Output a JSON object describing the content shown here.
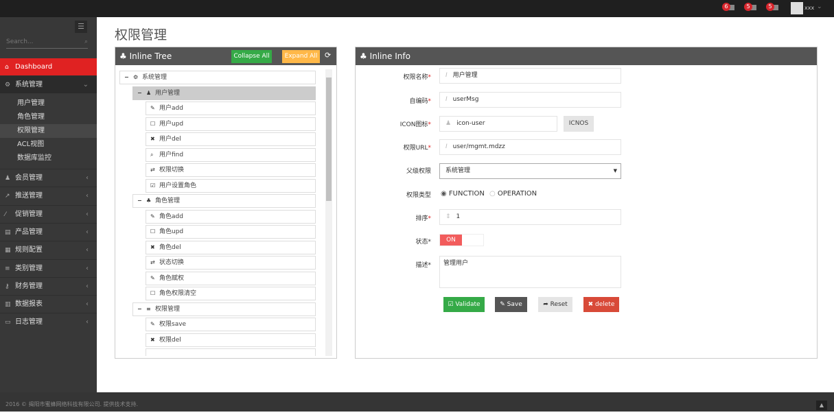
{
  "topbar": {
    "notifications": [
      {
        "count": "6",
        "icon": "bell-icon"
      },
      {
        "count": "5",
        "icon": "envelope-icon"
      },
      {
        "count": "5",
        "icon": "tasks-icon"
      }
    ],
    "user": "xxx"
  },
  "sidebar": {
    "search_placeholder": "Search...",
    "dashboard": "Dashboard",
    "system": "系统管理",
    "sub_items": [
      "用户管理",
      "角色管理",
      "权限管理",
      "ACL视图",
      "数据库监控"
    ],
    "items": [
      {
        "label": "会员管理",
        "icon": "user-icon"
      },
      {
        "label": "推送管理",
        "icon": "share-icon"
      },
      {
        "label": "促销管理",
        "icon": "magic-icon"
      },
      {
        "label": "产品管理",
        "icon": "book-icon"
      },
      {
        "label": "规则配置",
        "icon": "list-alt-icon"
      },
      {
        "label": "类别管理",
        "icon": "reorder-icon"
      },
      {
        "label": "财务管理",
        "icon": "key-icon"
      },
      {
        "label": "数据报表",
        "icon": "chart-icon"
      },
      {
        "label": "日志管理",
        "icon": "credit-card-icon"
      }
    ]
  },
  "page_title": "权限管理",
  "tree": {
    "title": "Inline Tree",
    "collapse_all": "Collapse All",
    "expand_all": "Expand All",
    "nodes": [
      {
        "label": "系统管理",
        "level": 0,
        "icon": "cogs-icon",
        "toggle": "−"
      },
      {
        "label": "用户管理",
        "level": 1,
        "icon": "user-icon",
        "toggle": "−",
        "selected": true
      },
      {
        "label": "用户add",
        "level": 2,
        "icon": "pencil-icon"
      },
      {
        "label": "用户upd",
        "level": 2,
        "icon": "edit-icon"
      },
      {
        "label": "用户del",
        "level": 2,
        "icon": "remove-icon"
      },
      {
        "label": "用户find",
        "level": 2,
        "icon": "search-icon"
      },
      {
        "label": "权限切换",
        "level": 2,
        "icon": "retweet-icon"
      },
      {
        "label": "用户设置角色",
        "level": 2,
        "icon": "check-icon"
      },
      {
        "label": "角色管理",
        "level": 1,
        "icon": "sitemap-icon",
        "toggle": "−"
      },
      {
        "label": "角色add",
        "level": 2,
        "icon": "pencil-icon"
      },
      {
        "label": "角色upd",
        "level": 2,
        "icon": "edit-icon"
      },
      {
        "label": "角色del",
        "level": 2,
        "icon": "remove-icon"
      },
      {
        "label": "状态切换",
        "level": 2,
        "icon": "retweet-icon"
      },
      {
        "label": "角色赋权",
        "level": 2,
        "icon": "pencil-icon"
      },
      {
        "label": "角色权限清空",
        "level": 2,
        "icon": "checkbox-empty-icon"
      },
      {
        "label": "权限管理",
        "level": 1,
        "icon": "reorder-icon",
        "toggle": "−"
      },
      {
        "label": "权限save",
        "level": 2,
        "icon": "pencil-icon"
      },
      {
        "label": "权限del",
        "level": 2,
        "icon": "remove-icon"
      }
    ]
  },
  "info": {
    "title": "Inline Info",
    "fields": {
      "name": {
        "label": "权限名称",
        "value": "用户管理"
      },
      "code": {
        "label": "自编码",
        "value": "userMsg"
      },
      "icon": {
        "label": "ICON图标",
        "value": "icon-user",
        "button": "ICNOS"
      },
      "url": {
        "label": "权限URL",
        "value": "user/mgmt.mdzz"
      },
      "parent": {
        "label": "父级权限",
        "value": "系统管理"
      },
      "type": {
        "label": "权限类型",
        "options": [
          "FUNCTION",
          "OPERATION"
        ],
        "selected": "FUNCTION"
      },
      "order": {
        "label": "排序",
        "value": "1"
      },
      "status": {
        "label": "状态",
        "value": "ON"
      },
      "desc": {
        "label": "描述",
        "value": "管理用户"
      }
    },
    "buttons": {
      "validate": "Validate",
      "save": "Save",
      "reset": "Reset",
      "delete": "delete"
    }
  },
  "footer": "2016 © 揭阳市蜜蜂网络科技有限公司. 提供技术支持.",
  "colors": {
    "accent": "#e02222",
    "green": "#35aa47",
    "orange": "#ffb848",
    "dark": "#555555",
    "delete": "#d84a38"
  }
}
